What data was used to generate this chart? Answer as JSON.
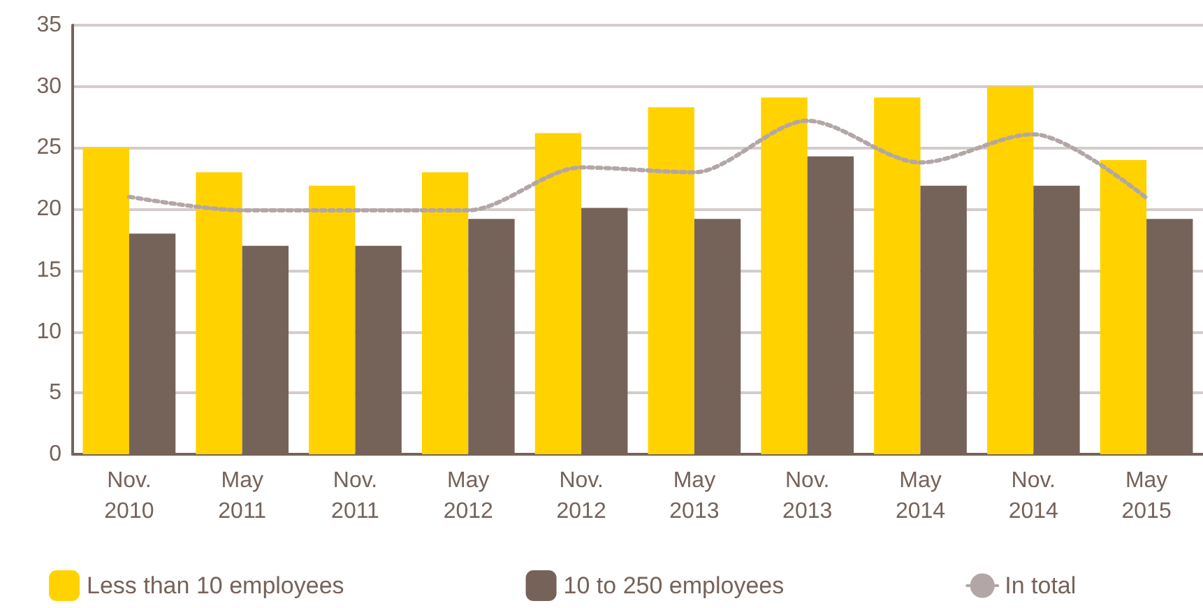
{
  "chart_data": {
    "type": "bar",
    "categories": [
      "Nov.\n2010",
      "May\n2011",
      "Nov.\n2011",
      "May\n2012",
      "Nov.\n2012",
      "May\n2013",
      "Nov.\n2013",
      "May\n2014",
      "Nov.\n2014",
      "May\n2015"
    ],
    "series": [
      {
        "name": "Less than 10 employees",
        "color": "#ffd200",
        "values": [
          25,
          23,
          21.9,
          23,
          26.2,
          28.3,
          29.1,
          29.1,
          30,
          24
        ]
      },
      {
        "name": "10 to 250 employees",
        "color": "#75635a",
        "values": [
          18,
          17,
          17,
          19.2,
          20.1,
          19.2,
          24.3,
          21.9,
          21.9,
          19.2
        ]
      },
      {
        "name": "In total",
        "type": "line",
        "color": "#b3a6a6",
        "line_style": "dotted",
        "values": [
          21,
          19.9,
          19.9,
          19.9,
          23.4,
          23,
          27.2,
          23.8,
          26.1,
          20.9
        ]
      }
    ],
    "ylim": [
      0,
      35
    ],
    "yticks": [
      0,
      5,
      10,
      15,
      20,
      25,
      30,
      35
    ],
    "grid": "y",
    "legend": "bottom",
    "marker": "none"
  }
}
